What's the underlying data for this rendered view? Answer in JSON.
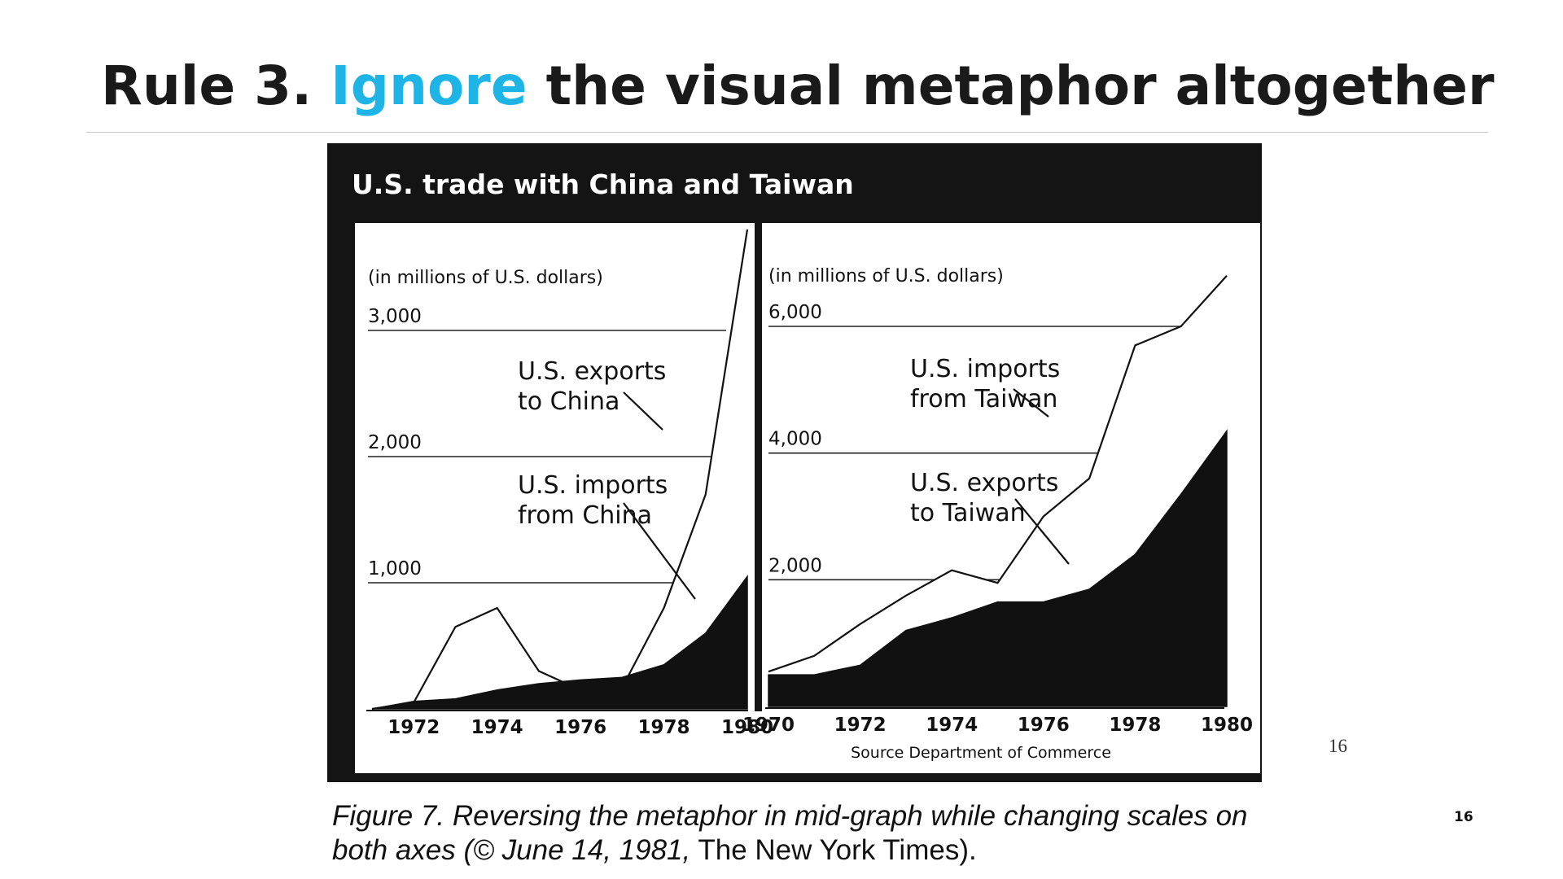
{
  "slide": {
    "title_prefix": "Rule 3. ",
    "title_highlight": "Ignore",
    "title_suffix": " the visual metaphor altogether",
    "highlight_color": "#1eb4e6",
    "note_number": "16",
    "page_number": "16"
  },
  "caption": {
    "figure_label": "Figure 7.",
    "text_italic": " Reversing the metaphor in mid-graph while changing scales on both axes (© June 14, 1981,",
    "text_plain": " The New York Times)."
  },
  "chart_data": [
    {
      "type": "area",
      "title": "U.S. trade with China and Taiwan",
      "unit_label": "(in millions of U.S. dollars)",
      "x": [
        1971,
        1972,
        1973,
        1974,
        1975,
        1976,
        1977,
        1978,
        1979,
        1980
      ],
      "x_ticks": [
        "1972",
        "1974",
        "1976",
        "1978",
        "1980"
      ],
      "y_ticks": [
        "1,000",
        "2,000",
        "3,000"
      ],
      "ylim": [
        0,
        3000
      ],
      "series": [
        {
          "name": "U.S. exports to China",
          "fill": "white",
          "values": [
            0,
            50,
            650,
            800,
            300,
            150,
            170,
            800,
            1700,
            3800
          ]
        },
        {
          "name": "U.S. imports from China",
          "fill": "black",
          "values": [
            0,
            60,
            80,
            150,
            200,
            230,
            250,
            350,
            600,
            1050
          ]
        }
      ]
    },
    {
      "type": "area",
      "unit_label": "(in millions of U.S. dollars)",
      "x": [
        1970,
        1971,
        1972,
        1973,
        1974,
        1975,
        1976,
        1977,
        1978,
        1979,
        1980
      ],
      "x_ticks": [
        "1970",
        "1972",
        "1974",
        "1976",
        "1978",
        "1980"
      ],
      "y_ticks": [
        "2,000",
        "4,000",
        "6,000"
      ],
      "ylim": [
        0,
        6000
      ],
      "series": [
        {
          "name": "U.S. imports from Taiwan",
          "fill": "white",
          "values": [
            550,
            800,
            1300,
            1750,
            2150,
            1950,
            3000,
            3600,
            5700,
            6000,
            6800
          ]
        },
        {
          "name": "U.S. exports to Taiwan",
          "fill": "black",
          "values": [
            500,
            500,
            650,
            1200,
            1400,
            1650,
            1650,
            1850,
            2400,
            3350,
            4350
          ]
        }
      ],
      "source": "Source  Department of Commerce"
    }
  ]
}
